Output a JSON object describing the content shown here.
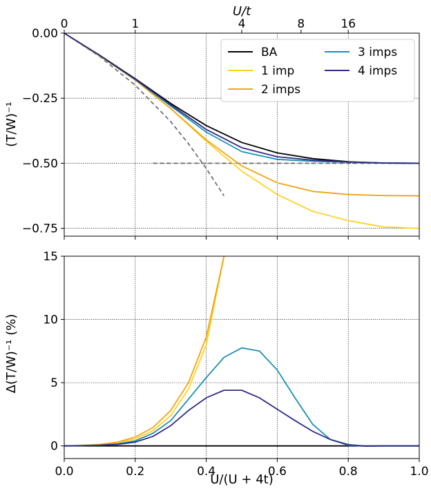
{
  "chart_data": [
    {
      "id": "top",
      "type": "line",
      "xlabel_top": "U/t",
      "ylabel": "(T/W)⁻¹",
      "xlim": [
        0,
        1
      ],
      "ylim": [
        -0.78,
        0
      ],
      "grid": true,
      "x_ticks": [
        0.0,
        0.2,
        0.4,
        0.6,
        0.8,
        1.0
      ],
      "y_ticks": [
        0.0,
        -0.25,
        -0.5,
        -0.75
      ],
      "y_tick_labels": [
        "0.00",
        "−0.25",
        "−0.50",
        "−0.75"
      ],
      "top_ticks": [
        {
          "pos": 0.0,
          "label": "0"
        },
        {
          "pos": 0.2,
          "label": "1"
        },
        {
          "pos": 0.5,
          "label": "4"
        },
        {
          "pos": 0.667,
          "label": "8"
        },
        {
          "pos": 0.8,
          "label": "16"
        }
      ],
      "legend_position": "top-right",
      "legend_columns": 2,
      "x": [
        0.0,
        0.1,
        0.2,
        0.3,
        0.4,
        0.5,
        0.6,
        0.7,
        0.8,
        0.9,
        1.0
      ],
      "series": [
        {
          "name": "BA",
          "color": "#000000",
          "values": [
            0.0,
            -0.085,
            -0.175,
            -0.27,
            -0.355,
            -0.42,
            -0.46,
            -0.482,
            -0.494,
            -0.499,
            -0.5
          ]
        },
        {
          "name": "1 imp",
          "color": "#FFD21F",
          "values": [
            0.0,
            -0.088,
            -0.18,
            -0.29,
            -0.415,
            -0.53,
            -0.62,
            -0.685,
            -0.72,
            -0.745,
            -0.75
          ]
        },
        {
          "name": "2 imps",
          "color": "#F2A30F",
          "values": [
            0.0,
            -0.087,
            -0.18,
            -0.29,
            -0.41,
            -0.51,
            -0.575,
            -0.608,
            -0.62,
            -0.624,
            -0.625
          ]
        },
        {
          "name": "3 imps",
          "color": "#1A8FB2",
          "values": [
            0.0,
            -0.086,
            -0.178,
            -0.28,
            -0.38,
            -0.455,
            -0.485,
            -0.492,
            -0.496,
            -0.499,
            -0.5
          ]
        },
        {
          "name": "4 imps",
          "color": "#2E2B84",
          "values": [
            0.0,
            -0.086,
            -0.177,
            -0.275,
            -0.37,
            -0.44,
            -0.475,
            -0.488,
            -0.495,
            -0.499,
            -0.5
          ]
        }
      ],
      "reference_curves": [
        {
          "color": "#707070",
          "style": "dashed",
          "x": [
            0.0,
            0.1,
            0.2,
            0.3,
            0.35,
            0.4,
            0.45
          ],
          "values": [
            0.0,
            -0.09,
            -0.2,
            -0.34,
            -0.425,
            -0.52,
            -0.625
          ]
        },
        {
          "color": "#707070",
          "style": "dashed",
          "x": [
            0.25,
            1.0
          ],
          "values": [
            -0.5,
            -0.5
          ]
        }
      ]
    },
    {
      "id": "bottom",
      "type": "line",
      "xlabel": "U/(U + 4t)",
      "ylabel": "Δ(T/W)⁻¹ (%)",
      "xlim": [
        0,
        1
      ],
      "ylim": [
        -1,
        15
      ],
      "grid": true,
      "x_ticks": [
        0.0,
        0.2,
        0.4,
        0.6,
        0.8,
        1.0
      ],
      "x_tick_labels": [
        "0.0",
        "0.2",
        "0.4",
        "0.6",
        "0.8",
        "1.0"
      ],
      "y_ticks": [
        0,
        5,
        10,
        15
      ],
      "y_tick_labels": [
        "0",
        "5",
        "10",
        "15"
      ],
      "x": [
        0.0,
        0.05,
        0.1,
        0.15,
        0.2,
        0.25,
        0.3,
        0.35,
        0.4,
        0.45,
        0.5,
        0.55,
        0.6,
        0.65,
        0.7,
        0.75,
        0.8,
        0.85,
        0.9,
        0.95,
        1.0
      ],
      "series": [
        {
          "name": "BA",
          "color": "#000000",
          "values": [
            0,
            0,
            0,
            0,
            0,
            0,
            0,
            0,
            0,
            0,
            0,
            0,
            0,
            0,
            0,
            0,
            0,
            0,
            0,
            0,
            0
          ]
        },
        {
          "name": "1 imp",
          "color": "#FFD21F",
          "values": [
            0.0,
            0.03,
            0.1,
            0.25,
            0.55,
            1.2,
            2.4,
            4.5,
            8.0,
            15.0,
            null,
            null,
            null,
            null,
            null,
            null,
            null,
            null,
            null,
            null,
            null
          ]
        },
        {
          "name": "2 imps",
          "color": "#F2A30F",
          "values": [
            0.0,
            0.04,
            0.12,
            0.3,
            0.7,
            1.45,
            2.8,
            5.0,
            8.6,
            15.0,
            null,
            null,
            null,
            null,
            null,
            null,
            null,
            null,
            null,
            null,
            null
          ]
        },
        {
          "name": "3 imps",
          "color": "#1A8FB2",
          "values": [
            0.0,
            0.02,
            0.06,
            0.15,
            0.4,
            1.0,
            2.0,
            3.7,
            5.4,
            7.0,
            7.75,
            7.5,
            6.0,
            3.8,
            1.7,
            0.5,
            0.05,
            -0.02,
            0.0,
            0.0,
            0.0
          ]
        },
        {
          "name": "4 imps",
          "color": "#2E2B84",
          "values": [
            0.0,
            0.02,
            0.05,
            0.12,
            0.3,
            0.75,
            1.6,
            2.8,
            3.8,
            4.4,
            4.4,
            3.8,
            2.9,
            2.0,
            1.15,
            0.5,
            0.1,
            -0.02,
            0.0,
            0.0,
            0.0
          ]
        }
      ]
    }
  ]
}
